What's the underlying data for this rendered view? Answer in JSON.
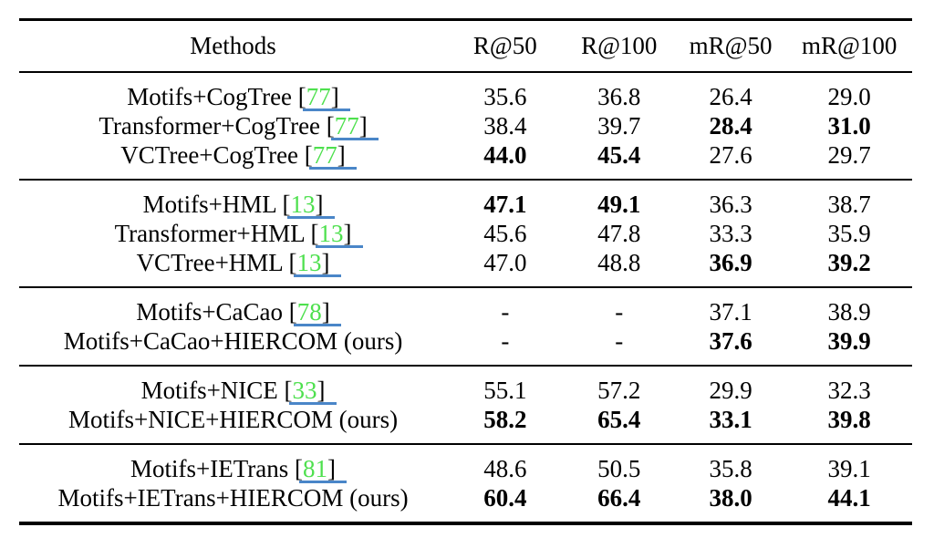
{
  "table": {
    "columns": [
      "Methods",
      "R@50",
      "R@100",
      "mR@50",
      "mR@100"
    ],
    "colors": {
      "citation_green": "#4ee04e",
      "link_underline_blue": "#4a86c8",
      "text": "#000000",
      "background": "#ffffff",
      "rule": "#000000"
    },
    "groups": [
      {
        "rows": [
          {
            "method": "Motifs+CogTree",
            "cite": "77",
            "suffix": "",
            "values": [
              "35.6",
              "36.8",
              "26.4",
              "29.0"
            ],
            "bold": [
              false,
              false,
              false,
              false
            ]
          },
          {
            "method": "Transformer+CogTree",
            "cite": "77",
            "suffix": "",
            "values": [
              "38.4",
              "39.7",
              "28.4",
              "31.0"
            ],
            "bold": [
              false,
              false,
              true,
              true
            ]
          },
          {
            "method": "VCTree+CogTree",
            "cite": "77",
            "suffix": "",
            "values": [
              "44.0",
              "45.4",
              "27.6",
              "29.7"
            ],
            "bold": [
              true,
              true,
              false,
              false
            ]
          }
        ]
      },
      {
        "rows": [
          {
            "method": "Motifs+HML",
            "cite": "13",
            "suffix": "",
            "values": [
              "47.1",
              "49.1",
              "36.3",
              "38.7"
            ],
            "bold": [
              true,
              true,
              false,
              false
            ]
          },
          {
            "method": "Transformer+HML",
            "cite": "13",
            "suffix": "",
            "values": [
              "45.6",
              "47.8",
              "33.3",
              "35.9"
            ],
            "bold": [
              false,
              false,
              false,
              false
            ]
          },
          {
            "method": "VCTree+HML",
            "cite": "13",
            "suffix": "",
            "values": [
              "47.0",
              "48.8",
              "36.9",
              "39.2"
            ],
            "bold": [
              false,
              false,
              true,
              true
            ]
          }
        ]
      },
      {
        "rows": [
          {
            "method": "Motifs+CaCao",
            "cite": "78",
            "suffix": "",
            "values": [
              "-",
              "-",
              "37.1",
              "38.9"
            ],
            "bold": [
              false,
              false,
              false,
              false
            ]
          },
          {
            "method": "Motifs+CaCao+HIERCOM",
            "cite": null,
            "suffix": " (ours)",
            "values": [
              "-",
              "-",
              "37.6",
              "39.9"
            ],
            "bold": [
              false,
              false,
              true,
              true
            ]
          }
        ]
      },
      {
        "rows": [
          {
            "method": "Motifs+NICE",
            "cite": "33",
            "suffix": "",
            "values": [
              "55.1",
              "57.2",
              "29.9",
              "32.3"
            ],
            "bold": [
              false,
              false,
              false,
              false
            ]
          },
          {
            "method": "Motifs+NICE+HIERCOM",
            "cite": null,
            "suffix": " (ours)",
            "values": [
              "58.2",
              "65.4",
              "33.1",
              "39.8"
            ],
            "bold": [
              true,
              true,
              true,
              true
            ]
          }
        ]
      },
      {
        "rows": [
          {
            "method": "Motifs+IETrans",
            "cite": "81",
            "suffix": "",
            "values": [
              "48.6",
              "50.5",
              "35.8",
              "39.1"
            ],
            "bold": [
              false,
              false,
              false,
              false
            ]
          },
          {
            "method": "Motifs+IETrans+HIERCOM",
            "cite": null,
            "suffix": " (ours)",
            "values": [
              "60.4",
              "66.4",
              "38.0",
              "44.1"
            ],
            "bold": [
              true,
              true,
              true,
              true
            ]
          }
        ]
      }
    ]
  }
}
